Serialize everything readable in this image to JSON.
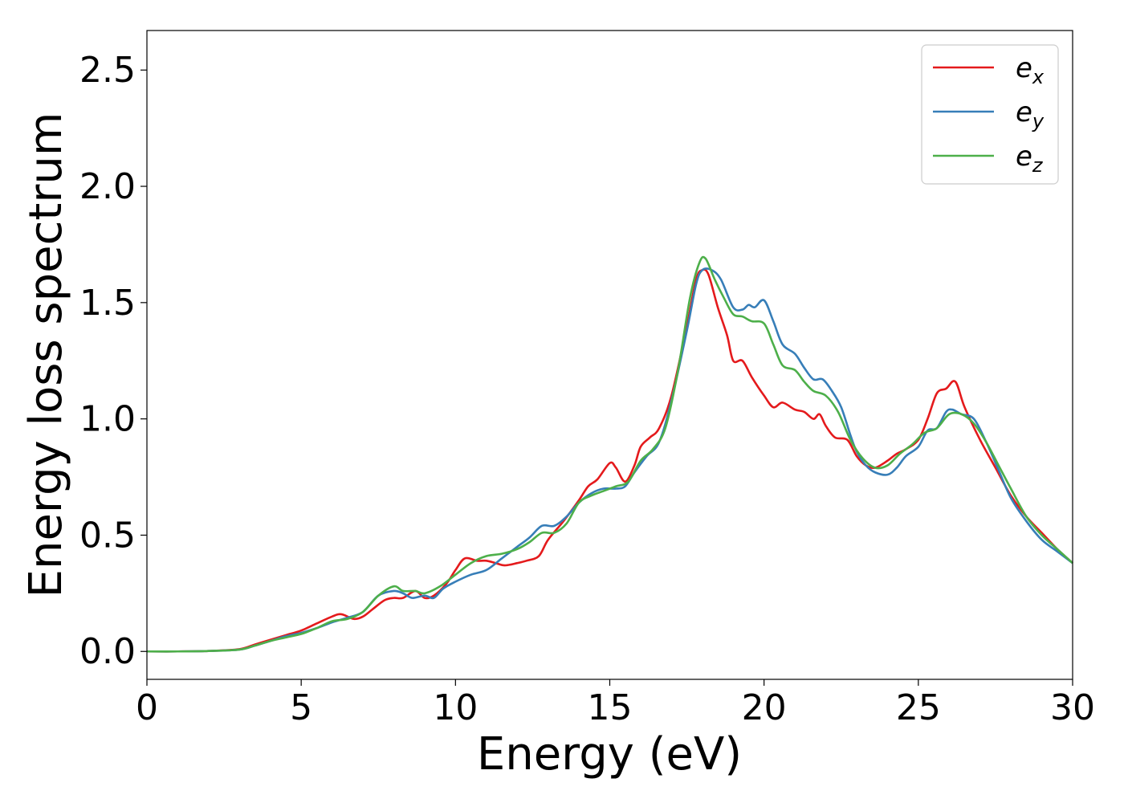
{
  "chart_data": {
    "type": "line",
    "title": "",
    "xlabel": "Energy (eV)",
    "ylabel": "Energy loss spectrum",
    "xlim": [
      0,
      30
    ],
    "ylim": [
      -0.12,
      2.67
    ],
    "xticks": [
      0,
      5,
      10,
      15,
      20,
      25,
      30
    ],
    "xtick_labels": [
      "0",
      "5",
      "10",
      "15",
      "20",
      "25",
      "30"
    ],
    "yticks": [
      0.0,
      0.5,
      1.0,
      1.5,
      2.0,
      2.5
    ],
    "ytick_labels": [
      "0.0",
      "0.5",
      "1.0",
      "1.5",
      "2.0",
      "2.5"
    ],
    "grid": false,
    "legend_position": "top-right",
    "series": [
      {
        "name": "e",
        "name_sub": "x",
        "color": "#e41a1c",
        "points": [
          [
            0,
            0
          ],
          [
            1,
            0
          ],
          [
            2,
            0.002
          ],
          [
            3,
            0.01
          ],
          [
            3.5,
            0.03
          ],
          [
            4,
            0.05
          ],
          [
            4.5,
            0.07
          ],
          [
            5,
            0.09
          ],
          [
            5.5,
            0.12
          ],
          [
            6,
            0.15
          ],
          [
            6.3,
            0.16
          ],
          [
            6.7,
            0.14
          ],
          [
            7,
            0.15
          ],
          [
            7.3,
            0.18
          ],
          [
            7.7,
            0.22
          ],
          [
            8,
            0.23
          ],
          [
            8.3,
            0.23
          ],
          [
            8.7,
            0.26
          ],
          [
            9,
            0.23
          ],
          [
            9.3,
            0.24
          ],
          [
            9.7,
            0.29
          ],
          [
            10,
            0.35
          ],
          [
            10.3,
            0.4
          ],
          [
            10.7,
            0.39
          ],
          [
            11,
            0.39
          ],
          [
            11.3,
            0.38
          ],
          [
            11.6,
            0.37
          ],
          [
            12,
            0.38
          ],
          [
            12.3,
            0.39
          ],
          [
            12.7,
            0.41
          ],
          [
            13,
            0.48
          ],
          [
            13.5,
            0.56
          ],
          [
            14,
            0.65
          ],
          [
            14.3,
            0.71
          ],
          [
            14.6,
            0.74
          ],
          [
            15,
            0.81
          ],
          [
            15.2,
            0.79
          ],
          [
            15.5,
            0.73
          ],
          [
            15.8,
            0.8
          ],
          [
            16,
            0.88
          ],
          [
            16.3,
            0.92
          ],
          [
            16.6,
            0.96
          ],
          [
            17,
            1.1
          ],
          [
            17.5,
            1.4
          ],
          [
            17.8,
            1.6
          ],
          [
            18,
            1.64
          ],
          [
            18.2,
            1.62
          ],
          [
            18.5,
            1.48
          ],
          [
            18.8,
            1.36
          ],
          [
            19,
            1.25
          ],
          [
            19.3,
            1.25
          ],
          [
            19.6,
            1.18
          ],
          [
            20,
            1.1
          ],
          [
            20.3,
            1.05
          ],
          [
            20.6,
            1.07
          ],
          [
            21,
            1.04
          ],
          [
            21.3,
            1.03
          ],
          [
            21.6,
            1.0
          ],
          [
            21.8,
            1.02
          ],
          [
            22,
            0.97
          ],
          [
            22.3,
            0.92
          ],
          [
            22.7,
            0.91
          ],
          [
            23,
            0.84
          ],
          [
            23.3,
            0.8
          ],
          [
            23.6,
            0.79
          ],
          [
            24,
            0.82
          ],
          [
            24.3,
            0.85
          ],
          [
            24.6,
            0.87
          ],
          [
            25,
            0.91
          ],
          [
            25.3,
            1.0
          ],
          [
            25.6,
            1.11
          ],
          [
            25.9,
            1.13
          ],
          [
            26.2,
            1.16
          ],
          [
            26.5,
            1.05
          ],
          [
            27,
            0.91
          ],
          [
            27.5,
            0.79
          ],
          [
            28,
            0.67
          ],
          [
            28.5,
            0.58
          ],
          [
            29,
            0.51
          ],
          [
            29.5,
            0.44
          ],
          [
            30,
            0.38
          ]
        ]
      },
      {
        "name": "e",
        "name_sub": "y",
        "color": "#377eb8",
        "points": [
          [
            0,
            0
          ],
          [
            1,
            0
          ],
          [
            2,
            0.002
          ],
          [
            3,
            0.008
          ],
          [
            3.5,
            0.025
          ],
          [
            4,
            0.045
          ],
          [
            4.5,
            0.065
          ],
          [
            5,
            0.08
          ],
          [
            5.5,
            0.1
          ],
          [
            6,
            0.125
          ],
          [
            6.5,
            0.145
          ],
          [
            7,
            0.17
          ],
          [
            7.5,
            0.24
          ],
          [
            8,
            0.26
          ],
          [
            8.3,
            0.25
          ],
          [
            8.6,
            0.23
          ],
          [
            9,
            0.24
          ],
          [
            9.3,
            0.23
          ],
          [
            9.6,
            0.27
          ],
          [
            10,
            0.3
          ],
          [
            10.5,
            0.33
          ],
          [
            11,
            0.35
          ],
          [
            11.5,
            0.4
          ],
          [
            12,
            0.45
          ],
          [
            12.4,
            0.49
          ],
          [
            12.8,
            0.54
          ],
          [
            13.2,
            0.54
          ],
          [
            13.6,
            0.58
          ],
          [
            14,
            0.64
          ],
          [
            14.4,
            0.68
          ],
          [
            14.8,
            0.7
          ],
          [
            15.2,
            0.7
          ],
          [
            15.5,
            0.71
          ],
          [
            15.8,
            0.77
          ],
          [
            16.2,
            0.84
          ],
          [
            16.6,
            0.9
          ],
          [
            17,
            1.08
          ],
          [
            17.5,
            1.38
          ],
          [
            17.8,
            1.58
          ],
          [
            18,
            1.64
          ],
          [
            18.3,
            1.64
          ],
          [
            18.6,
            1.6
          ],
          [
            19,
            1.48
          ],
          [
            19.3,
            1.47
          ],
          [
            19.5,
            1.49
          ],
          [
            19.7,
            1.48
          ],
          [
            20,
            1.51
          ],
          [
            20.3,
            1.42
          ],
          [
            20.6,
            1.32
          ],
          [
            21,
            1.28
          ],
          [
            21.3,
            1.22
          ],
          [
            21.6,
            1.17
          ],
          [
            21.9,
            1.17
          ],
          [
            22.2,
            1.12
          ],
          [
            22.5,
            1.05
          ],
          [
            22.8,
            0.93
          ],
          [
            23,
            0.86
          ],
          [
            23.3,
            0.8
          ],
          [
            23.6,
            0.77
          ],
          [
            24,
            0.76
          ],
          [
            24.3,
            0.79
          ],
          [
            24.6,
            0.84
          ],
          [
            25,
            0.88
          ],
          [
            25.3,
            0.95
          ],
          [
            25.6,
            0.96
          ],
          [
            25.9,
            1.03
          ],
          [
            26.1,
            1.04
          ],
          [
            26.4,
            1.02
          ],
          [
            26.8,
            1.0
          ],
          [
            27.2,
            0.9
          ],
          [
            27.6,
            0.78
          ],
          [
            28,
            0.66
          ],
          [
            28.5,
            0.56
          ],
          [
            29,
            0.48
          ],
          [
            29.5,
            0.43
          ],
          [
            30,
            0.38
          ]
        ]
      },
      {
        "name": "e",
        "name_sub": "z",
        "color": "#4daf4a",
        "points": [
          [
            0,
            0
          ],
          [
            1,
            0
          ],
          [
            2,
            0.002
          ],
          [
            3,
            0.008
          ],
          [
            3.5,
            0.025
          ],
          [
            4,
            0.045
          ],
          [
            4.5,
            0.06
          ],
          [
            5,
            0.075
          ],
          [
            5.5,
            0.1
          ],
          [
            6,
            0.13
          ],
          [
            6.5,
            0.14
          ],
          [
            7,
            0.17
          ],
          [
            7.5,
            0.24
          ],
          [
            8,
            0.28
          ],
          [
            8.3,
            0.26
          ],
          [
            8.7,
            0.26
          ],
          [
            9,
            0.25
          ],
          [
            9.5,
            0.28
          ],
          [
            10,
            0.33
          ],
          [
            10.5,
            0.38
          ],
          [
            11,
            0.41
          ],
          [
            11.5,
            0.42
          ],
          [
            12,
            0.44
          ],
          [
            12.4,
            0.47
          ],
          [
            12.8,
            0.51
          ],
          [
            13.2,
            0.51
          ],
          [
            13.6,
            0.55
          ],
          [
            14,
            0.64
          ],
          [
            14.4,
            0.67
          ],
          [
            14.8,
            0.69
          ],
          [
            15.2,
            0.71
          ],
          [
            15.6,
            0.73
          ],
          [
            16,
            0.82
          ],
          [
            16.4,
            0.87
          ],
          [
            16.8,
            0.96
          ],
          [
            17.2,
            1.2
          ],
          [
            17.6,
            1.52
          ],
          [
            17.9,
            1.67
          ],
          [
            18.1,
            1.69
          ],
          [
            18.4,
            1.6
          ],
          [
            18.7,
            1.52
          ],
          [
            19,
            1.45
          ],
          [
            19.3,
            1.44
          ],
          [
            19.6,
            1.42
          ],
          [
            20,
            1.41
          ],
          [
            20.3,
            1.32
          ],
          [
            20.6,
            1.23
          ],
          [
            21,
            1.21
          ],
          [
            21.3,
            1.16
          ],
          [
            21.6,
            1.12
          ],
          [
            22,
            1.1
          ],
          [
            22.4,
            1.03
          ],
          [
            22.8,
            0.91
          ],
          [
            23.2,
            0.83
          ],
          [
            23.6,
            0.79
          ],
          [
            24,
            0.8
          ],
          [
            24.4,
            0.85
          ],
          [
            24.8,
            0.89
          ],
          [
            25.2,
            0.94
          ],
          [
            25.6,
            0.96
          ],
          [
            26,
            1.02
          ],
          [
            26.4,
            1.02
          ],
          [
            26.8,
            0.98
          ],
          [
            27.2,
            0.9
          ],
          [
            27.6,
            0.8
          ],
          [
            28,
            0.7
          ],
          [
            28.5,
            0.58
          ],
          [
            29,
            0.5
          ],
          [
            29.5,
            0.44
          ],
          [
            30,
            0.38
          ]
        ]
      }
    ]
  }
}
